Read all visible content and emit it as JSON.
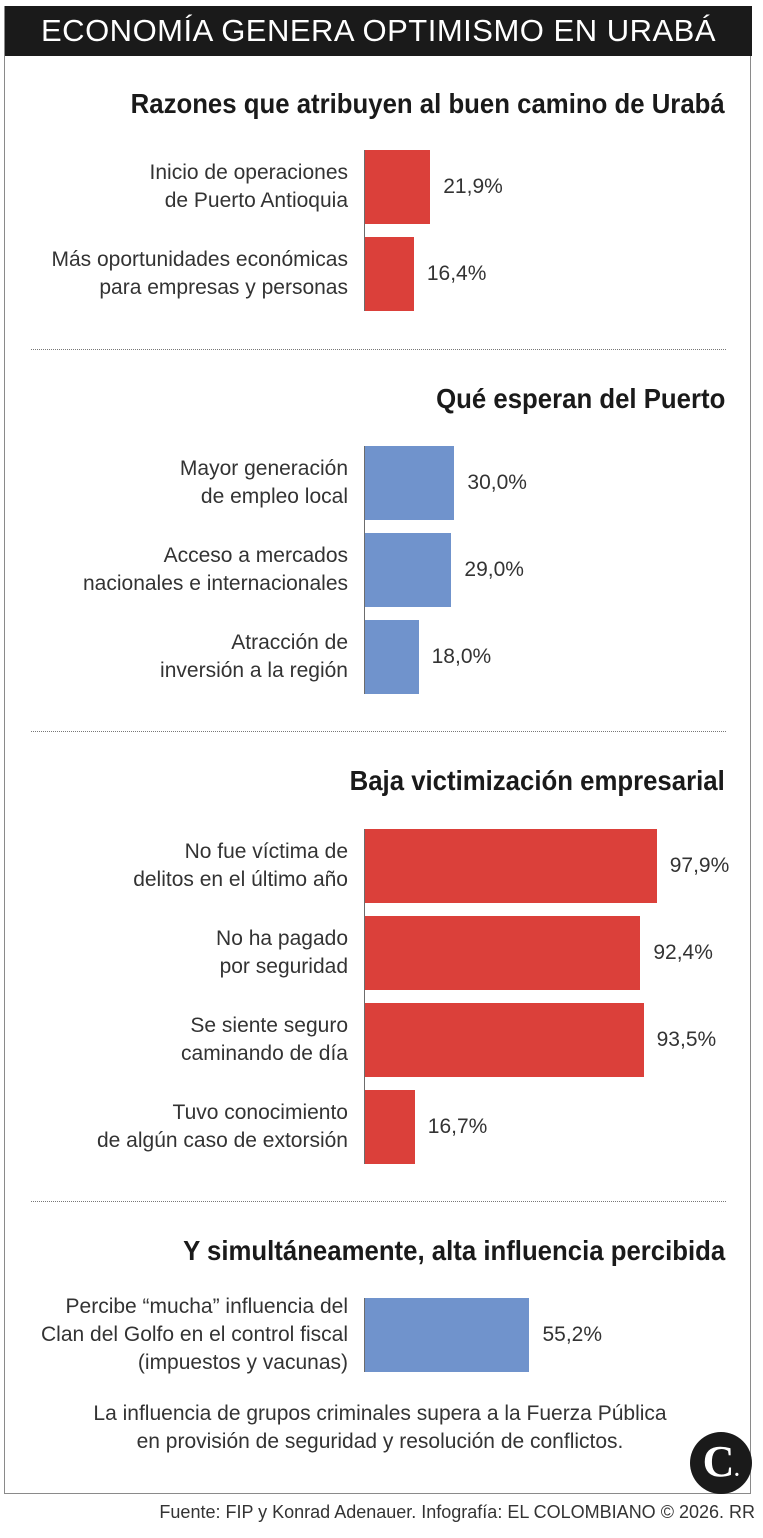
{
  "header": {
    "title": "ECONOMÍA GENERA OPTIMISMO EN URABÁ"
  },
  "colors": {
    "red": "#db403a",
    "blue": "#7093cc"
  },
  "chart_data": [
    {
      "type": "bar",
      "orientation": "horizontal",
      "title": "Razones que atribuyen al buen camino de Urabá",
      "color": "red",
      "categories": [
        [
          "Inicio de operaciones",
          "de Puerto Antioquia"
        ],
        [
          "Más oportunidades económicas",
          "para empresas y personas"
        ]
      ],
      "values": [
        21.9,
        16.4
      ],
      "labels": [
        "21,9%",
        "16,4%"
      ],
      "xlim": [
        0,
        100
      ]
    },
    {
      "type": "bar",
      "orientation": "horizontal",
      "title": "Qué esperan del Puerto",
      "color": "blue",
      "categories": [
        [
          "Mayor generación",
          "de empleo local"
        ],
        [
          "Acceso a mercados",
          "nacionales e internacionales"
        ],
        [
          "Atracción de",
          "inversión a la región"
        ]
      ],
      "values": [
        30.0,
        29.0,
        18.0
      ],
      "labels": [
        "30,0%",
        "29,0%",
        "18,0%"
      ],
      "xlim": [
        0,
        100
      ]
    },
    {
      "type": "bar",
      "orientation": "horizontal",
      "title": "Baja victimización empresarial",
      "color": "red",
      "categories": [
        [
          "No fue víctima de",
          "delitos en el último año"
        ],
        [
          "No ha pagado",
          "por seguridad"
        ],
        [
          "Se siente seguro",
          "caminando de día"
        ],
        [
          "Tuvo conocimiento",
          "de algún caso de extorsión"
        ]
      ],
      "values": [
        97.9,
        92.4,
        93.5,
        16.7
      ],
      "labels": [
        "97,9%",
        "92,4%",
        "93,5%",
        "16,7%"
      ],
      "xlim": [
        0,
        100
      ]
    },
    {
      "type": "bar",
      "orientation": "horizontal",
      "title": "Y simultáneamente, alta influencia percibida",
      "color": "blue",
      "categories": [
        [
          "Percibe “mucha” influencia del",
          "Clan del Golfo en el control fiscal",
          "(impuestos y vacunas)"
        ]
      ],
      "values": [
        55.2
      ],
      "labels": [
        "55,2%"
      ],
      "xlim": [
        0,
        100
      ]
    }
  ],
  "note": [
    "La influencia de grupos criminales supera a la Fuerza Pública",
    "en provisión de seguridad y resolución de conflictos."
  ],
  "logo": {
    "letter": "C",
    "dot": "."
  },
  "source": "Fuente: FIP y Konrad Adenauer. Infografía: EL COLOMBIANO © 2026. RR"
}
